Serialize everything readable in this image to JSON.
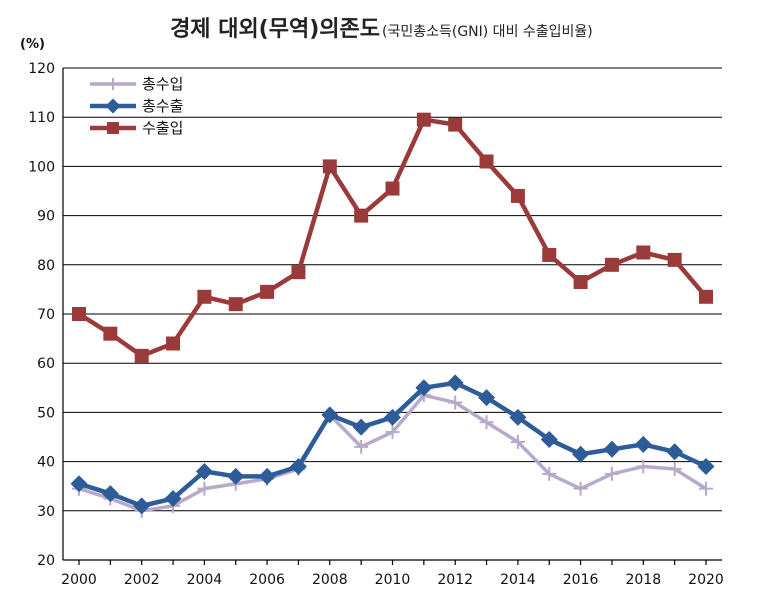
{
  "chart_data": {
    "type": "line",
    "title": "경제 대외(무역)의존도",
    "subtitle": "(국민총소득(GNI) 대비 수출입비율)",
    "ylabel": "(%)",
    "xlabel": "",
    "ylim": [
      20,
      120
    ],
    "yticks": [
      20,
      30,
      40,
      50,
      60,
      70,
      80,
      90,
      100,
      110,
      120
    ],
    "x": [
      2000,
      2001,
      2002,
      2003,
      2004,
      2005,
      2006,
      2007,
      2008,
      2009,
      2010,
      2011,
      2012,
      2013,
      2014,
      2015,
      2016,
      2017,
      2018,
      2019,
      2020
    ],
    "xtick_labels": [
      "2000",
      "2002",
      "2004",
      "2006",
      "2008",
      "2010",
      "2012",
      "2014",
      "2016",
      "2018",
      "2020"
    ],
    "grid": true,
    "legend": "top-left",
    "series": [
      {
        "name": "총수입",
        "color": "#b7a9c9",
        "marker": "plus",
        "values": [
          34.5,
          32.5,
          30.0,
          31.0,
          34.5,
          35.5,
          36.5,
          38.5,
          49.5,
          43.0,
          46.0,
          53.5,
          52.0,
          48.0,
          44.0,
          37.5,
          34.5,
          37.5,
          39.0,
          38.5,
          34.5
        ]
      },
      {
        "name": "총수출",
        "color": "#2e5c98",
        "marker": "diamond",
        "values": [
          35.5,
          33.5,
          31.0,
          32.5,
          38.0,
          37.0,
          37.0,
          39.0,
          49.5,
          47.0,
          49.0,
          55.0,
          56.0,
          53.0,
          49.0,
          44.5,
          41.5,
          42.5,
          43.5,
          42.0,
          39.0
        ]
      },
      {
        "name": "수출입",
        "color": "#9b3a3a",
        "marker": "square",
        "values": [
          70.0,
          66.0,
          61.5,
          64.0,
          73.5,
          72.0,
          74.5,
          78.5,
          100.0,
          90.0,
          95.5,
          109.5,
          108.5,
          101.0,
          94.0,
          82.0,
          76.5,
          80.0,
          82.5,
          81.0,
          73.5
        ]
      }
    ]
  }
}
